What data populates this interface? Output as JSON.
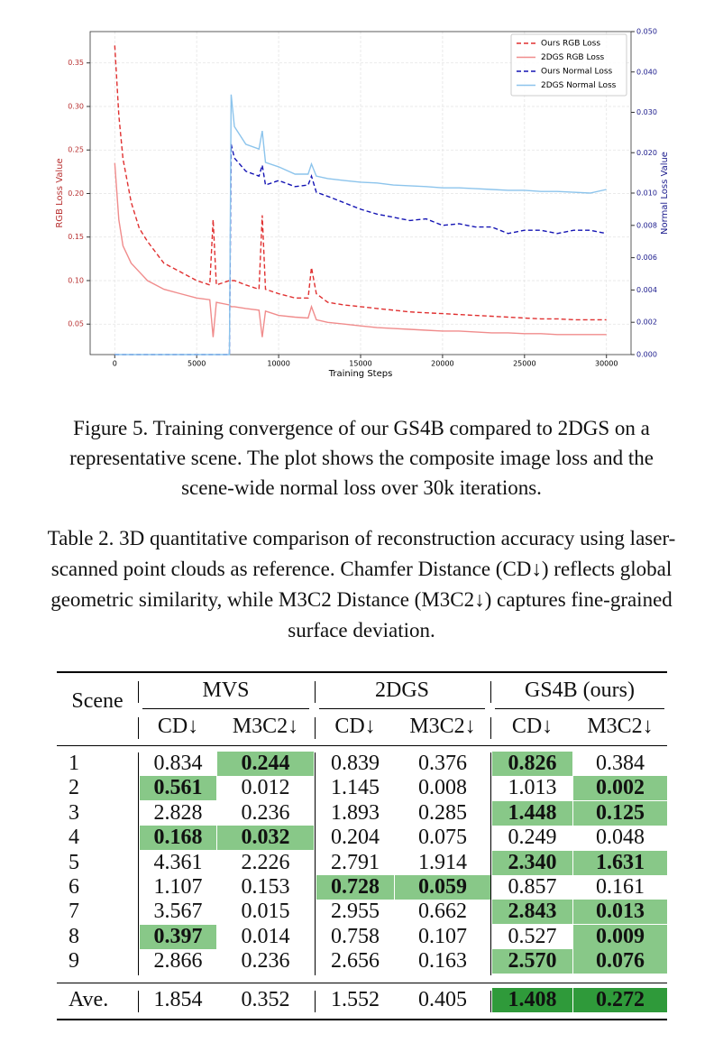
{
  "chart_data": {
    "type": "line",
    "xlabel": "Training Steps",
    "ylabel": "RGB Loss Value",
    "y2label": "Normal Loss Value",
    "x": [
      0,
      250,
      500,
      1000,
      1500,
      2000,
      3000,
      4000,
      5000,
      5800,
      6000,
      6200,
      7000,
      7100,
      7300,
      8000,
      8800,
      9000,
      9200,
      10000,
      11000,
      11800,
      12000,
      12300,
      13000,
      14000,
      15000,
      16000,
      17000,
      18000,
      19000,
      20000,
      21000,
      22000,
      23000,
      24000,
      25000,
      26000,
      27000,
      28000,
      29000,
      30000
    ],
    "series": [
      {
        "name": "Ours RGB Loss",
        "color": "#e03030",
        "dash": true,
        "values": [
          0.37,
          0.29,
          0.24,
          0.19,
          0.16,
          0.145,
          0.12,
          0.11,
          0.1,
          0.095,
          0.17,
          0.095,
          0.1,
          0.1,
          0.1,
          0.095,
          0.09,
          0.175,
          0.09,
          0.085,
          0.08,
          0.08,
          0.115,
          0.085,
          0.075,
          0.072,
          0.07,
          0.068,
          0.066,
          0.064,
          0.063,
          0.062,
          0.061,
          0.06,
          0.059,
          0.058,
          0.057,
          0.056,
          0.056,
          0.055,
          0.055,
          0.055
        ]
      },
      {
        "name": "2DGS RGB Loss",
        "color": "#f08c8c",
        "dash": false,
        "values": [
          0.235,
          0.17,
          0.14,
          0.12,
          0.11,
          0.1,
          0.09,
          0.085,
          0.08,
          0.078,
          0.035,
          0.075,
          0.072,
          0.07,
          0.07,
          0.068,
          0.066,
          0.035,
          0.065,
          0.06,
          0.058,
          0.057,
          0.07,
          0.055,
          0.052,
          0.05,
          0.048,
          0.046,
          0.045,
          0.044,
          0.043,
          0.042,
          0.042,
          0.041,
          0.04,
          0.04,
          0.039,
          0.039,
          0.038,
          0.038,
          0.038,
          0.038
        ]
      },
      {
        "name": "Ours Normal Loss",
        "color": "#1414b4",
        "dash": true,
        "axis": "y2",
        "values": [
          0,
          0,
          0,
          0,
          0,
          0,
          0,
          0,
          0,
          0,
          0,
          0,
          0,
          0.0221,
          0.0187,
          0.0154,
          0.0142,
          0.0169,
          0.012,
          0.0131,
          0.0116,
          0.012,
          0.0142,
          0.0102,
          0.0098,
          0.0094,
          0.009,
          0.0087,
          0.0085,
          0.0083,
          0.0084,
          0.008,
          0.0081,
          0.0079,
          0.0079,
          0.0075,
          0.0077,
          0.0077,
          0.0075,
          0.0077,
          0.0077,
          0.0075
        ]
      },
      {
        "name": "2DGS Normal Loss",
        "color": "#8cc4ec",
        "dash": false,
        "axis": "y2",
        "values": [
          0,
          0,
          0,
          0,
          0,
          0,
          0,
          0,
          0,
          0,
          0,
          0,
          0,
          0.0344,
          0.0265,
          0.0221,
          0.0209,
          0.0254,
          0.0176,
          0.0165,
          0.0147,
          0.0147,
          0.0172,
          0.0142,
          0.0136,
          0.0131,
          0.0127,
          0.0125,
          0.012,
          0.0118,
          0.0116,
          0.0113,
          0.0113,
          0.0111,
          0.0109,
          0.0107,
          0.0107,
          0.0104,
          0.0104,
          0.0102,
          0.01,
          0.0109
        ]
      }
    ],
    "xlim": [
      -1500,
      31500
    ],
    "xticks": [
      0,
      5000,
      10000,
      15000,
      20000,
      25000,
      30000
    ],
    "ylim": [
      0.015,
      0.386
    ],
    "yticks": [
      0.05,
      {
        "value": 0.1,
        "label": "0.10"
      },
      0.15,
      {
        "value": 0.2,
        "label": "0.20"
      },
      0.25,
      {
        "value": 0.3,
        "label": "0.30"
      },
      0.35
    ],
    "y2lim": [
      0,
      0.05
    ],
    "y2scale": "split",
    "y2ticks": [
      {
        "value": 0,
        "label": "0.000"
      },
      {
        "value": 0.002,
        "label": "0.002"
      },
      {
        "value": 0.004,
        "label": "0.004"
      },
      {
        "value": 0.006,
        "label": "0.006"
      },
      {
        "value": 0.008,
        "label": "0.008"
      },
      {
        "value": 0.01,
        "label": "0.010"
      },
      {
        "value": 0.02,
        "label": "0.020"
      },
      {
        "value": 0.03,
        "label": "0.030"
      },
      {
        "value": 0.04,
        "label": "0.040"
      },
      {
        "value": 0.05,
        "label": "0.050"
      }
    ],
    "ycolor": "#b83030",
    "y2color": "#1a1a8c",
    "grid": true,
    "legend": "upper right"
  },
  "figure_caption": "Figure 5. Training convergence of our GS4B compared to 2DGS on a representative scene. The plot shows the composite image loss and the scene-wide normal loss over 30k iterations.",
  "table_caption": "Table 2. 3D quantitative comparison of reconstruction accuracy using laser-scanned point clouds as reference. Chamfer Distance (CD↓) reflects global geometric similarity, while M3C2 Distance (M3C2↓) captures fine-grained surface deviation.",
  "table": {
    "scene_header": "Scene",
    "groups": [
      "MVS",
      "2DGS",
      "GS4B (ours)"
    ],
    "subheaders": [
      "CD↓",
      "M3C2↓",
      "CD↓",
      "M3C2↓",
      "CD↓",
      "M3C2↓"
    ],
    "rows": [
      {
        "scene": "1",
        "values": [
          "0.834",
          "0.244",
          "0.839",
          "0.376",
          "0.826",
          "0.384"
        ],
        "best": [
          1,
          4
        ]
      },
      {
        "scene": "2",
        "values": [
          "0.561",
          "0.012",
          "1.145",
          "0.008",
          "1.013",
          "0.002"
        ],
        "best": [
          0,
          5
        ]
      },
      {
        "scene": "3",
        "values": [
          "2.828",
          "0.236",
          "1.893",
          "0.285",
          "1.448",
          "0.125"
        ],
        "best": [
          4,
          5
        ]
      },
      {
        "scene": "4",
        "values": [
          "0.168",
          "0.032",
          "0.204",
          "0.075",
          "0.249",
          "0.048"
        ],
        "best": [
          0,
          1
        ]
      },
      {
        "scene": "5",
        "values": [
          "4.361",
          "2.226",
          "2.791",
          "1.914",
          "2.340",
          "1.631"
        ],
        "best": [
          4,
          5
        ]
      },
      {
        "scene": "6",
        "values": [
          "1.107",
          "0.153",
          "0.728",
          "0.059",
          "0.857",
          "0.161"
        ],
        "best": [
          2,
          3
        ]
      },
      {
        "scene": "7",
        "values": [
          "3.567",
          "0.015",
          "2.955",
          "0.662",
          "2.843",
          "0.013"
        ],
        "best": [
          4,
          5
        ]
      },
      {
        "scene": "8",
        "values": [
          "0.397",
          "0.014",
          "0.758",
          "0.107",
          "0.527",
          "0.009"
        ],
        "best": [
          0,
          5
        ]
      },
      {
        "scene": "9",
        "values": [
          "2.866",
          "0.236",
          "2.656",
          "0.163",
          "2.570",
          "0.076"
        ],
        "best": [
          4,
          5
        ]
      }
    ],
    "average": {
      "scene": "Ave.",
      "values": [
        "1.854",
        "0.352",
        "1.552",
        "0.405",
        "1.408",
        "0.272"
      ],
      "best": [
        4,
        5
      ]
    },
    "best_color": "#88c888",
    "average_best_color": "#2f9a3a"
  }
}
